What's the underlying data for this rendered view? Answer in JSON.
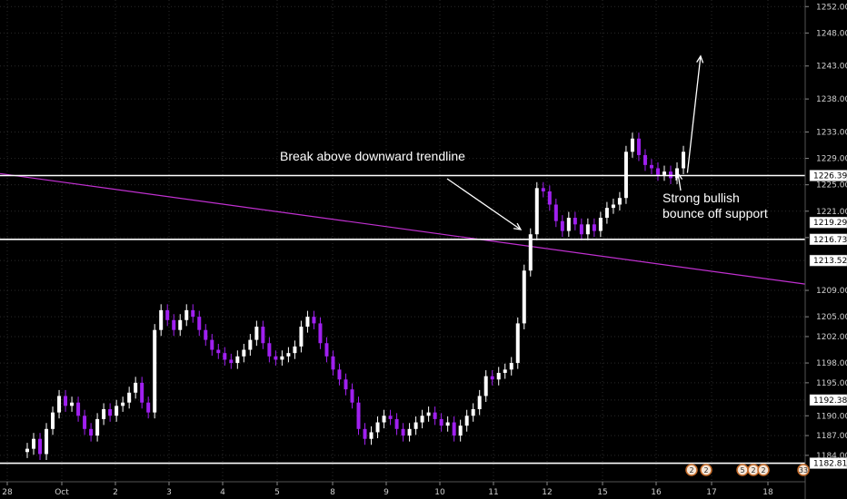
{
  "colors": {
    "background": "#000000",
    "grid": "#2a2a2a",
    "candle": "#ffffff",
    "candle_alt": "#a020f0",
    "trendline": "#c030d0",
    "support": "#ffffff",
    "text": "#ffffff",
    "axis_text": "#d0d0d0"
  },
  "chart_data": {
    "type": "candlestick",
    "title": "",
    "xlabel": "",
    "ylabel": "",
    "ylim": [
      1180.0,
      1253.0
    ],
    "y_ticks": [
      "1252.000",
      "1248.000",
      "1243.000",
      "1238.000",
      "1233.000",
      "1229.000",
      "1225.000",
      "1221.000",
      "1217.000",
      "1213.522",
      "1209.000",
      "1205.000",
      "1202.000",
      "1198.000",
      "1195.000",
      "1192.384",
      "1190.000",
      "1187.000",
      "1184.000",
      "1182.816"
    ],
    "x_ticks": [
      "28",
      "Oct",
      "2",
      "3",
      "4",
      "5",
      "8",
      "9",
      "10",
      "11",
      "12",
      "15",
      "16",
      "17",
      "18"
    ],
    "price_markers": [
      {
        "label": "1226.398",
        "value": 1226.398
      },
      {
        "label": "1219.295",
        "value": 1219.295
      },
      {
        "label": "1216.737",
        "value": 1216.737
      },
      {
        "label": "1213.522",
        "value": 1213.522
      },
      {
        "label": "1192.384",
        "value": 1192.384
      },
      {
        "label": "1182.816",
        "value": 1182.816
      }
    ],
    "horizontal_levels": [
      1226.398,
      1216.737,
      1182.816
    ],
    "trendline": {
      "from": {
        "x": "28",
        "y": 1226.7
      },
      "to": {
        "x": "18",
        "y": 1211.6
      }
    },
    "series": [
      {
        "name": "",
        "values": [
          1185.0,
          1186.5,
          1184.2,
          1188.0,
          1190.5,
          1193.0,
          1191.5,
          1192.0,
          1190.0,
          1188.0,
          1187.0,
          1189.5,
          1191.0,
          1190.0,
          1191.5,
          1192.0,
          1193.5,
          1195.0,
          1192.0,
          1190.5,
          1203.0,
          1206.0,
          1204.5,
          1203.0,
          1204.5,
          1206.0,
          1205.0,
          1203.0,
          1201.5,
          1200.0,
          1199.5,
          1198.5,
          1198.0,
          1199.0,
          1200.0,
          1201.5,
          1203.5,
          1201.0,
          1199.0,
          1198.5,
          1199.0,
          1199.5,
          1200.5,
          1203.5,
          1205.0,
          1204.0,
          1201.0,
          1199.0,
          1197.0,
          1195.5,
          1194.0,
          1192.0,
          1188.0,
          1186.5,
          1187.5,
          1189.0,
          1190.0,
          1189.5,
          1188.0,
          1187.0,
          1188.0,
          1189.0,
          1190.0,
          1190.5,
          1189.5,
          1188.5,
          1189.0,
          1187.0,
          1188.5,
          1190.0,
          1191.0,
          1193.0,
          1196.0,
          1195.5,
          1196.5,
          1197.0,
          1198.0,
          1204.0,
          1212.0,
          1217.5,
          1224.5,
          1224.0,
          1222.0,
          1219.5,
          1218.0,
          1220.0,
          1219.0,
          1217.5,
          1219.0,
          1218.0,
          1220.0,
          1221.5,
          1222.0,
          1223.0,
          1230.0,
          1232.0,
          1229.5,
          1228.0,
          1227.5,
          1226.5,
          1227.0,
          1226.0,
          1227.5,
          1230.0
        ]
      }
    ],
    "projection_arrow": {
      "from": {
        "x": "16.4",
        "y": 1226.8
      },
      "to": {
        "x": "16.9",
        "y": 1244.5
      }
    }
  },
  "annotations": [
    {
      "text": "Break above downward trendline"
    },
    {
      "text": "Strong bullish"
    },
    {
      "text": "bounce off support"
    }
  ],
  "event_badges": [
    {
      "text": "2"
    },
    {
      "text": "2"
    },
    {
      "text": "5"
    },
    {
      "text": "2"
    },
    {
      "text": "2"
    },
    {
      "text": "33"
    }
  ]
}
